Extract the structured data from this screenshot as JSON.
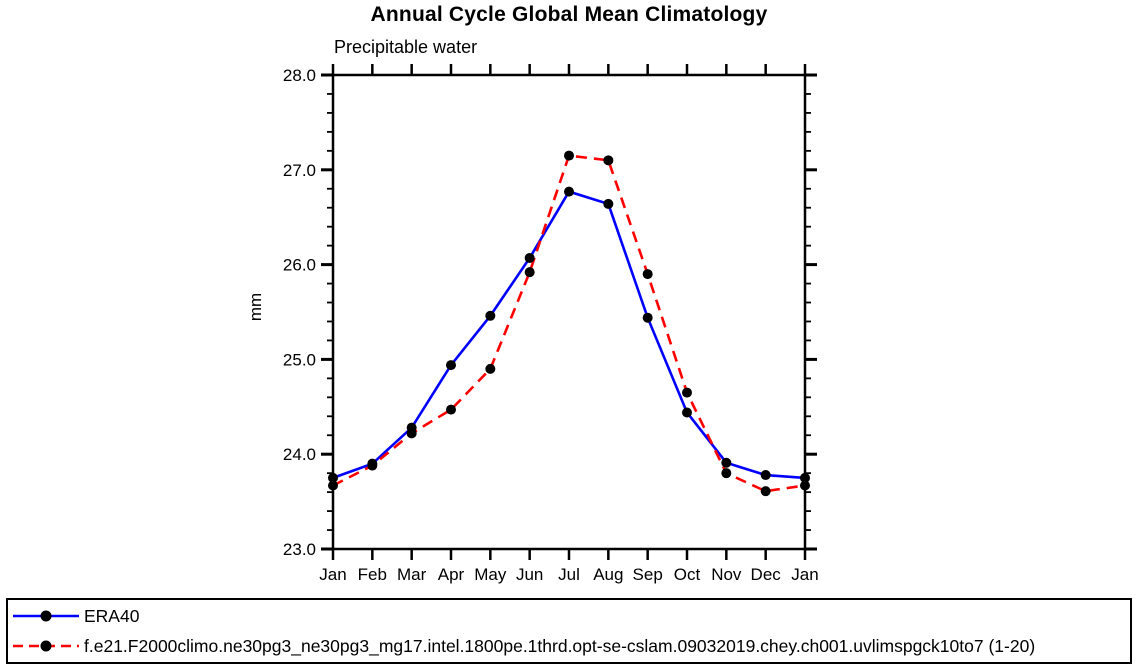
{
  "chart": {
    "title": "Annual Cycle Global Mean Climatology",
    "subtitle": "Precipitable water",
    "ylabel": "mm"
  },
  "chart_data": {
    "type": "line",
    "title": "Annual Cycle Global Mean Climatology",
    "subtitle": "Precipitable water",
    "xlabel": "",
    "ylabel": "mm",
    "x_categories": [
      "Jan",
      "Feb",
      "Mar",
      "Apr",
      "May",
      "Jun",
      "Jul",
      "Aug",
      "Sep",
      "Oct",
      "Nov",
      "Dec",
      "Jan"
    ],
    "ylim": [
      23.0,
      28.0
    ],
    "ytick_major_step": 1.0,
    "ytick_minor_step": 0.2,
    "ytick_labels": [
      "23.0",
      "24.0",
      "25.0",
      "26.0",
      "27.0",
      "28.0"
    ],
    "grid": false,
    "legend_position": "bottom-box",
    "marker_color": "#000000",
    "axis_color": "#000000",
    "series": [
      {
        "name": "ERA40",
        "color": "#0000ff",
        "style": "solid",
        "marker": "circle",
        "values": [
          23.75,
          23.9,
          24.28,
          24.94,
          25.46,
          26.07,
          26.77,
          26.64,
          25.44,
          24.44,
          23.91,
          23.78,
          23.75
        ]
      },
      {
        "name": "f.e21.F2000climo.ne30pg3_ne30pg3_mg17.intel.1800pe.1thrd.opt-se-cslam.09032019.chey.ch001.uvlimspgck10to7 (1-20)",
        "color": "#ff0000",
        "style": "dashed",
        "marker": "circle",
        "values": [
          23.67,
          23.88,
          24.22,
          24.47,
          24.9,
          25.92,
          27.15,
          27.1,
          25.9,
          24.65,
          23.8,
          23.61,
          23.67
        ]
      }
    ]
  }
}
